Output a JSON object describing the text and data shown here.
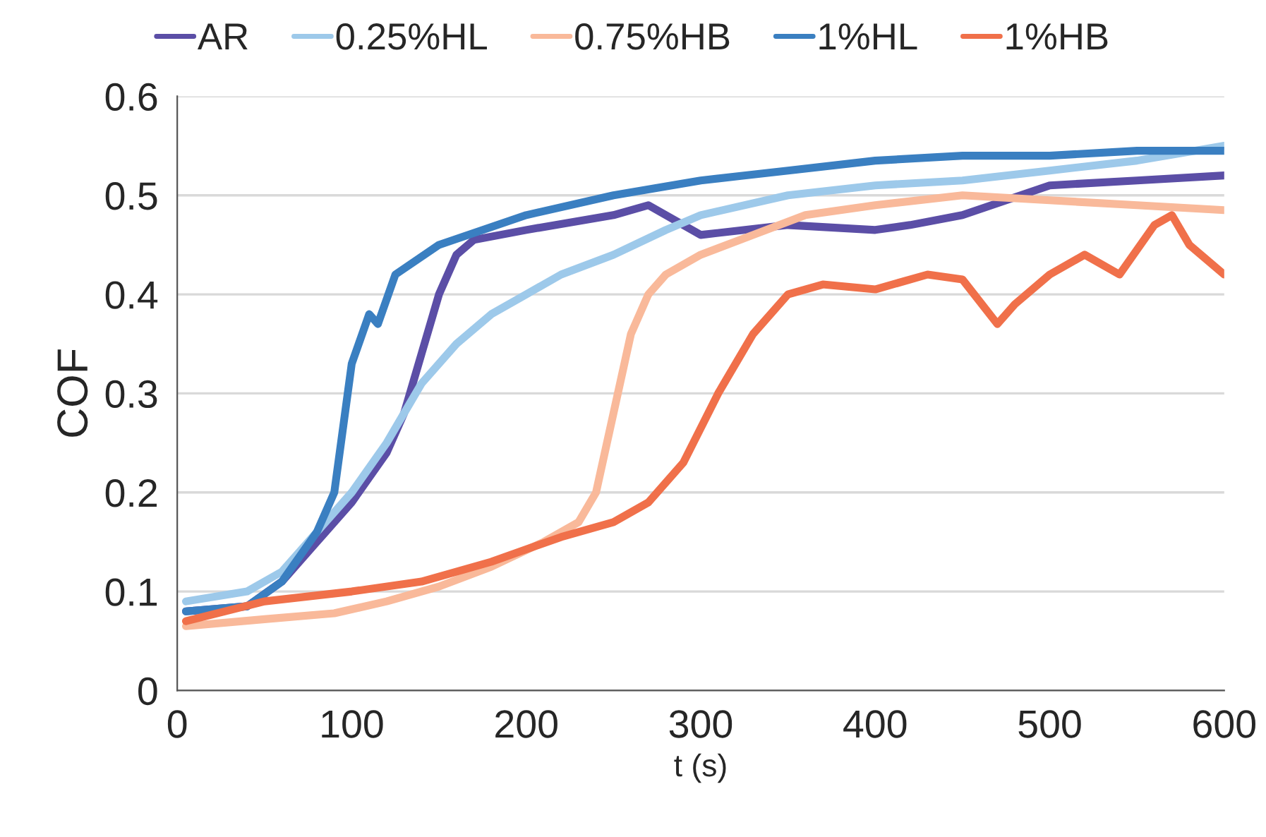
{
  "chart_data": {
    "type": "line",
    "xlabel": "t (s)",
    "ylabel": "COF",
    "xlim": [
      0,
      600
    ],
    "xticks": [
      0,
      100,
      200,
      300,
      400,
      500,
      600
    ],
    "ylim": [
      0,
      0.6
    ],
    "yticks": [
      0,
      0.1,
      0.2,
      0.3,
      0.4,
      0.5,
      0.6
    ],
    "grid": "y",
    "legend": "top",
    "marker": "none",
    "line_style": "solid",
    "series": [
      {
        "name": "AR",
        "color": "#5b4ea6",
        "x": [
          5,
          40,
          60,
          80,
          100,
          120,
          130,
          140,
          150,
          160,
          170,
          200,
          250,
          270,
          300,
          350,
          400,
          420,
          450,
          500,
          550,
          600
        ],
        "values": [
          0.08,
          0.085,
          0.11,
          0.15,
          0.19,
          0.24,
          0.28,
          0.34,
          0.4,
          0.44,
          0.455,
          0.465,
          0.48,
          0.49,
          0.46,
          0.47,
          0.465,
          0.47,
          0.48,
          0.51,
          0.515,
          0.52
        ]
      },
      {
        "name": "0.25%HL",
        "color": "#9dc9ea",
        "x": [
          5,
          40,
          60,
          80,
          100,
          120,
          140,
          160,
          180,
          200,
          220,
          250,
          280,
          300,
          350,
          400,
          450,
          500,
          550,
          600
        ],
        "values": [
          0.09,
          0.1,
          0.12,
          0.16,
          0.2,
          0.25,
          0.31,
          0.35,
          0.38,
          0.4,
          0.42,
          0.44,
          0.465,
          0.48,
          0.5,
          0.51,
          0.515,
          0.525,
          0.535,
          0.55
        ]
      },
      {
        "name": "0.75%HB",
        "color": "#f9b99a",
        "x": [
          5,
          50,
          90,
          120,
          150,
          180,
          210,
          230,
          240,
          250,
          260,
          270,
          280,
          300,
          330,
          360,
          400,
          450,
          500,
          550,
          600
        ],
        "values": [
          0.065,
          0.072,
          0.078,
          0.09,
          0.105,
          0.125,
          0.15,
          0.17,
          0.2,
          0.28,
          0.36,
          0.4,
          0.42,
          0.44,
          0.46,
          0.48,
          0.49,
          0.5,
          0.495,
          0.49,
          0.485
        ]
      },
      {
        "name": "1%HL",
        "color": "#3a7fc1",
        "x": [
          5,
          40,
          60,
          80,
          90,
          100,
          110,
          115,
          125,
          150,
          200,
          250,
          300,
          350,
          400,
          450,
          500,
          550,
          600
        ],
        "values": [
          0.08,
          0.085,
          0.11,
          0.16,
          0.2,
          0.33,
          0.38,
          0.37,
          0.42,
          0.45,
          0.48,
          0.5,
          0.515,
          0.525,
          0.535,
          0.54,
          0.54,
          0.545,
          0.545
        ]
      },
      {
        "name": "1%HB",
        "color": "#f0704a",
        "x": [
          5,
          50,
          100,
          140,
          180,
          220,
          250,
          270,
          290,
          310,
          330,
          350,
          370,
          400,
          430,
          450,
          470,
          480,
          500,
          520,
          540,
          560,
          570,
          580,
          600
        ],
        "values": [
          0.07,
          0.09,
          0.1,
          0.11,
          0.13,
          0.155,
          0.17,
          0.19,
          0.23,
          0.3,
          0.36,
          0.4,
          0.41,
          0.405,
          0.42,
          0.415,
          0.37,
          0.39,
          0.42,
          0.44,
          0.42,
          0.47,
          0.48,
          0.45,
          0.42
        ]
      }
    ]
  }
}
